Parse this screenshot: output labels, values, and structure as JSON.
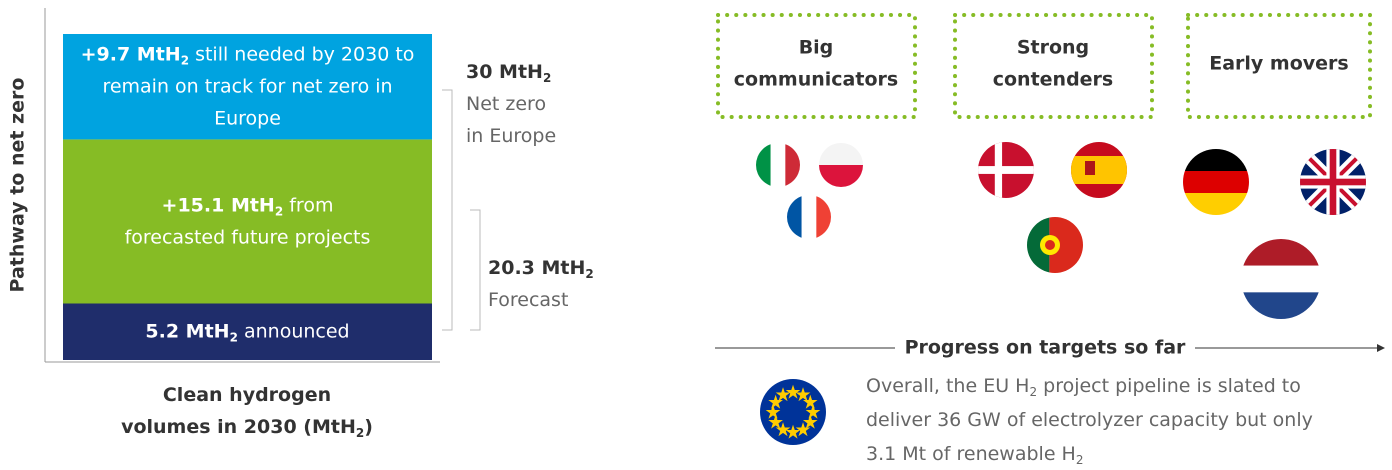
{
  "bar": {
    "axis_label": "Pathway to net zero",
    "caption": [
      [
        {
          "text": "Clean hydrogen",
          "bold": true
        }
      ],
      [
        {
          "text": "volumes in 2030 (MtH",
          "bold": true
        },
        {
          "text": "2",
          "bold": true,
          "sub": true
        },
        {
          "text": ")",
          "bold": true
        }
      ]
    ],
    "segments": [
      {
        "value": 5.2,
        "color": "#1f2d6b",
        "lines": [
          [
            {
              "text": "5.2 MtH",
              "bold": true
            },
            {
              "text": "2",
              "bold": true,
              "sub": true
            },
            {
              "text": " announced"
            }
          ]
        ]
      },
      {
        "value": 15.1,
        "color": "#86bc25",
        "lines": [
          [
            {
              "text": "+15.1 MtH",
              "bold": true
            },
            {
              "text": "2",
              "bold": true,
              "sub": true
            },
            {
              "text": " from"
            }
          ],
          [
            {
              "text": "forecasted future projects"
            }
          ]
        ]
      },
      {
        "value": 9.7,
        "color": "#00a3e0",
        "lines": [
          [
            {
              "text": "+9.7 MtH",
              "bold": true
            },
            {
              "text": "2",
              "bold": true,
              "sub": true
            },
            {
              "text": " still needed by 2030 to"
            }
          ],
          [
            {
              "text": "remain on track for net zero in"
            }
          ],
          [
            {
              "text": "Europe"
            }
          ]
        ]
      }
    ],
    "brackets": [
      {
        "lines": [
          [
            {
              "text": "30 MtH",
              "bold": true
            },
            {
              "text": "2",
              "bold": true,
              "sub": true
            }
          ],
          [
            {
              "text": "Net zero"
            }
          ],
          [
            {
              "text": "in Europe"
            }
          ]
        ]
      },
      {
        "lines": [
          [
            {
              "text": "20.3 MtH",
              "bold": true
            },
            {
              "text": "2",
              "bold": true,
              "sub": true
            }
          ],
          [
            {
              "text": "Forecast"
            }
          ]
        ]
      }
    ]
  },
  "groups": [
    {
      "title": [
        "Big",
        "communicators"
      ]
    },
    {
      "title": [
        "Strong",
        "contenders"
      ]
    },
    {
      "title": [
        "Early movers"
      ]
    }
  ],
  "progress": "Progress on targets so far",
  "note": [
    [
      {
        "text": "Overall, the EU H"
      },
      {
        "text": "2",
        "sub": true
      },
      {
        "text": " project pipeline is slated to"
      }
    ],
    [
      {
        "text": "deliver 36 GW of electrolyzer capacity but only"
      }
    ],
    [
      {
        "text": "3.1 Mt of renewable H"
      },
      {
        "text": "2",
        "sub": true
      }
    ]
  ]
}
